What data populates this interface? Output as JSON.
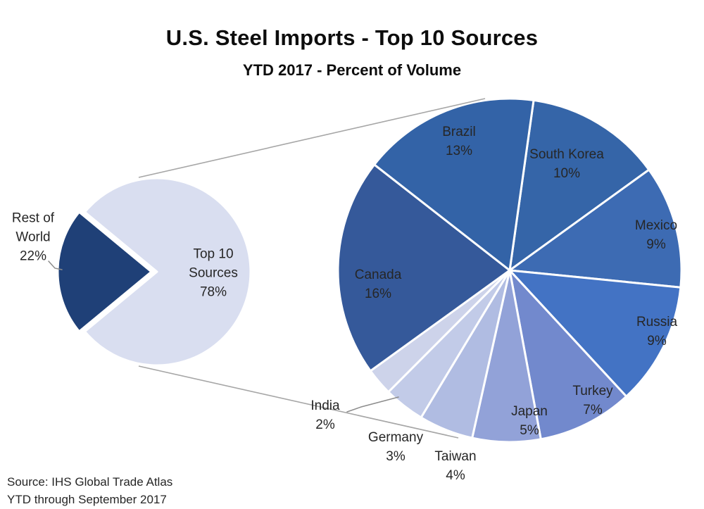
{
  "title": "U.S. Steel Imports - Top 10 Sources",
  "subtitle": "YTD 2017 - Percent of Volume",
  "source": {
    "line1": "Source: IHS Global Trade Atlas",
    "line2": "YTD through September 2017"
  },
  "chart_data": {
    "type": "pie",
    "variant": "pie-of-pie",
    "title": "U.S. Steel Imports - Top 10 Sources",
    "subtitle": "YTD 2017 - Percent of Volume",
    "units": "percent of total import volume",
    "legend": "none",
    "connector_color": "#a6a6a6",
    "leader_color": "#8c8c8c",
    "slice_border_color": "#ffffff",
    "label_color": "#262626",
    "primary": {
      "description": "overview pie (left)",
      "slices": [
        {
          "name": "Top 10 Sources",
          "value": 78,
          "pct_label": "78%",
          "label_lines": [
            "Top 10",
            "Sources",
            "78%"
          ],
          "color": "#d9def0",
          "exploded": false
        },
        {
          "name": "Rest of World",
          "value": 22,
          "pct_label": "22%",
          "label_lines": [
            "Rest of",
            "World",
            "22%"
          ],
          "color": "#1f4077",
          "exploded": true
        }
      ]
    },
    "secondary": {
      "description": "detail pie of the Top 10 sources (right), drawn clockwise from top",
      "start_angle_deg": 8,
      "slices": [
        {
          "name": "South Korea",
          "value": 10,
          "pct_label": "10%",
          "color": "#3565a8"
        },
        {
          "name": "Mexico",
          "value": 9,
          "pct_label": "9%",
          "color": "#3d6bb3"
        },
        {
          "name": "Russia",
          "value": 9,
          "pct_label": "9%",
          "color": "#4373c4"
        },
        {
          "name": "Turkey",
          "value": 7,
          "pct_label": "7%",
          "color": "#7289cd"
        },
        {
          "name": "Japan",
          "value": 5,
          "pct_label": "5%",
          "color": "#92a2d8"
        },
        {
          "name": "Taiwan",
          "value": 4,
          "pct_label": "4%",
          "color": "#b0bce2"
        },
        {
          "name": "Germany",
          "value": 3,
          "pct_label": "3%",
          "color": "#c2cbe8"
        },
        {
          "name": "India",
          "value": 2,
          "pct_label": "2%",
          "color": "#cdd3ea"
        },
        {
          "name": "Canada",
          "value": 16,
          "pct_label": "16%",
          "color": "#35599a"
        },
        {
          "name": "Brazil",
          "value": 13,
          "pct_label": "13%",
          "color": "#3363a7"
        }
      ]
    }
  }
}
